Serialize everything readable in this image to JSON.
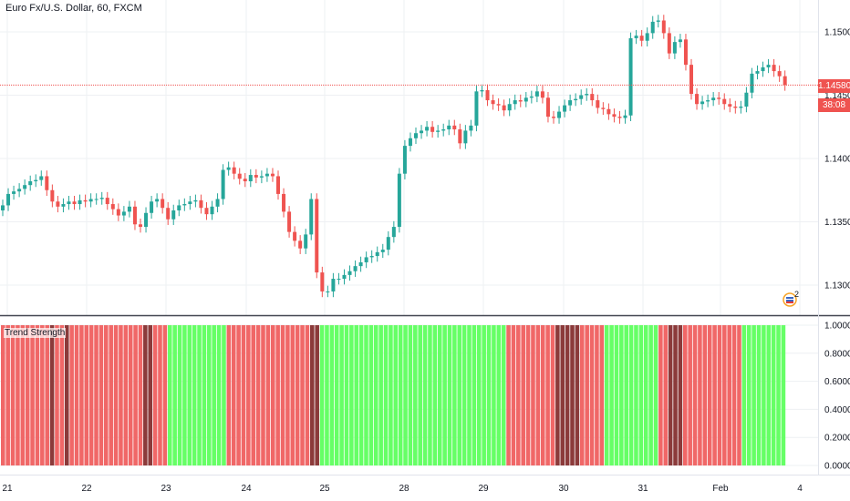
{
  "header": {
    "title": "Euro Fx/U.S. Dollar, 60, FXCM"
  },
  "indicator": {
    "label": "Trend Strength"
  },
  "price_tags": {
    "last_price": "1.14580",
    "countdown": "38:08"
  },
  "flag_badge": {
    "count": "2"
  },
  "colors": {
    "up": "#26a69a",
    "down": "#ef5350",
    "bullish_bar": "#66ff66",
    "bearish_bar": "#f06767",
    "bearish_dark": "#8b3a3a",
    "grid": "#eef0f3",
    "price_line": "#ef5350"
  },
  "chart_data": [
    {
      "type": "line",
      "title": "Euro Fx/U.S. Dollar, 60, FXCM",
      "x_tick_labels": [
        "21",
        "22",
        "23",
        "24",
        "25",
        "28",
        "29",
        "30",
        "31",
        "Feb",
        "4"
      ],
      "y_tick_labels": [
        "1.15000",
        "1.14500",
        "1.14000",
        "1.13500",
        "1.13000"
      ],
      "ylim": [
        1.1275,
        1.1535
      ],
      "last_price": 1.1458,
      "series": [
        {
          "values": [
            1.1363,
            1.1372,
            1.1374,
            1.1376,
            1.1379,
            1.1382,
            1.1383,
            1.1386,
            1.1375,
            1.1366,
            1.1362,
            1.1364,
            1.1366,
            1.1364,
            1.1367,
            1.1366,
            1.1368,
            1.1368,
            1.1369,
            1.1364,
            1.136,
            1.1355,
            1.1358,
            1.1362,
            1.1348,
            1.1346,
            1.1357,
            1.1366,
            1.1368,
            1.1361,
            1.1352,
            1.1359,
            1.1363,
            1.1364,
            1.1366,
            1.1367,
            1.1361,
            1.1356,
            1.1362,
            1.1368,
            1.1391,
            1.1393,
            1.1388,
            1.1384,
            1.1382,
            1.1387,
            1.1385,
            1.1386,
            1.1388,
            1.1386,
            1.1372,
            1.1358,
            1.1342,
            1.1335,
            1.1329,
            1.134,
            1.1368,
            1.131,
            1.1295,
            1.1295,
            1.1305,
            1.1305,
            1.1308,
            1.1311,
            1.1315,
            1.1318,
            1.1322,
            1.1323,
            1.1326,
            1.1328,
            1.1338,
            1.1346,
            1.1388,
            1.141,
            1.1416,
            1.142,
            1.1422,
            1.1425,
            1.1421,
            1.1422,
            1.1423,
            1.1426,
            1.1423,
            1.1412,
            1.1422,
            1.1426,
            1.1453,
            1.1454,
            1.1446,
            1.1443,
            1.1442,
            1.1438,
            1.1443,
            1.1446,
            1.1445,
            1.1448,
            1.1449,
            1.1453,
            1.1448,
            1.1433,
            1.1432,
            1.1437,
            1.1442,
            1.1446,
            1.1447,
            1.145,
            1.1451,
            1.1446,
            1.144,
            1.1439,
            1.1435,
            1.1433,
            1.1432,
            1.1434,
            1.1495,
            1.1497,
            1.1493,
            1.1499,
            1.1508,
            1.1509,
            1.1499,
            1.1483,
            1.1492,
            1.1494,
            1.1474,
            1.1451,
            1.1443,
            1.1445,
            1.1446,
            1.1448,
            1.1447,
            1.1443,
            1.1441,
            1.144,
            1.1441,
            1.1452,
            1.1467,
            1.1469,
            1.1472,
            1.1474,
            1.1469,
            1.1465,
            1.1458
          ]
        }
      ]
    },
    {
      "type": "bar",
      "title": "Trend Strength",
      "y_tick_labels": [
        "1.0000",
        "0.8000",
        "0.6000",
        "0.4000",
        "0.2000",
        "0.0000"
      ],
      "ylim": [
        0,
        1
      ],
      "bar_value": 1.0,
      "segments": [
        {
          "state": "bearish",
          "bars": 10
        },
        {
          "state": "bearish-dark",
          "bars": 1
        },
        {
          "state": "bearish",
          "bars": 2
        },
        {
          "state": "bearish-dark",
          "bars": 1
        },
        {
          "state": "bearish",
          "bars": 8
        },
        {
          "state": "bearish",
          "bars": 7
        },
        {
          "state": "bearish-dark",
          "bars": 2
        },
        {
          "state": "bearish",
          "bars": 3
        },
        {
          "state": "bullish",
          "bars": 12
        },
        {
          "state": "bearish",
          "bars": 17
        },
        {
          "state": "bearish-dark",
          "bars": 2
        },
        {
          "state": "bullish",
          "bars": 38
        },
        {
          "state": "bearish",
          "bars": 10
        },
        {
          "state": "bearish-dark",
          "bars": 5
        },
        {
          "state": "bearish",
          "bars": 5
        },
        {
          "state": "bullish",
          "bars": 11
        },
        {
          "state": "bearish",
          "bars": 2
        },
        {
          "state": "bearish-dark",
          "bars": 3
        },
        {
          "state": "bearish",
          "bars": 12
        },
        {
          "state": "bullish",
          "bars": 9
        }
      ]
    }
  ]
}
